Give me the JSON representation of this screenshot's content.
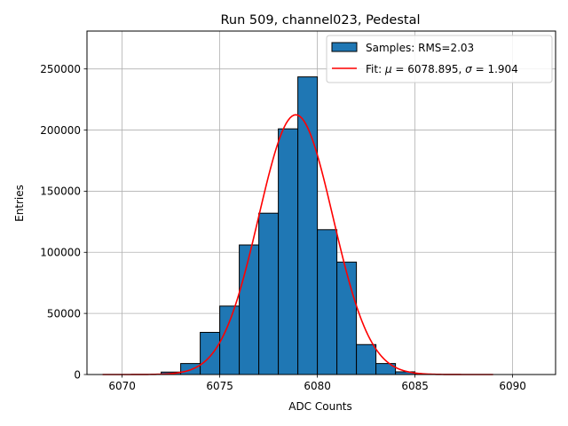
{
  "chart_data": {
    "type": "bar",
    "title": "Run 509, channel023, Pedestal",
    "xlabel": "ADC Counts",
    "ylabel": "Entries",
    "xlim": [
      6068.2,
      6092.2
    ],
    "ylim": [
      0,
      281000
    ],
    "grid": true,
    "legend_position": "top-right",
    "x_ticks": [
      6070,
      6075,
      6080,
      6085,
      6090
    ],
    "y_ticks": [
      0,
      50000,
      100000,
      150000,
      200000,
      250000
    ],
    "bin_width": 1,
    "bins": [
      {
        "left": 6072,
        "count": 2000
      },
      {
        "left": 6073,
        "count": 9000
      },
      {
        "left": 6074,
        "count": 34500
      },
      {
        "left": 6075,
        "count": 56000
      },
      {
        "left": 6076,
        "count": 106000
      },
      {
        "left": 6077,
        "count": 132000
      },
      {
        "left": 6078,
        "count": 201000
      },
      {
        "left": 6079,
        "count": 243500
      },
      {
        "left": 6080,
        "count": 118500
      },
      {
        "left": 6081,
        "count": 92000
      },
      {
        "left": 6082,
        "count": 24500
      },
      {
        "left": 6083,
        "count": 9000
      },
      {
        "left": 6084,
        "count": 2200
      },
      {
        "left": 6085,
        "count": 300
      }
    ],
    "fit": {
      "mu": 6078.895,
      "sigma": 1.904,
      "peak": 212500,
      "x_range": [
        6069,
        6089
      ]
    },
    "series": [
      {
        "name": "Samples: RMS=2.03",
        "kind": "histogram",
        "color": "#1f77b4"
      },
      {
        "name": "Fit: ",
        "kind": "line",
        "color": "#ff0000"
      }
    ],
    "legend_fit_parts": {
      "prefix": "Fit: ",
      "mu_symbol": "μ",
      "mu_text": " = 6078.895, ",
      "sigma_symbol": "σ",
      "sigma_text": " = 1.904"
    }
  }
}
